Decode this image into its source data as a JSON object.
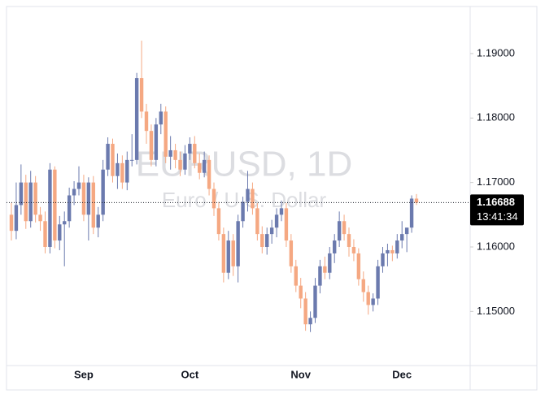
{
  "chart_data": {
    "type": "candlestick",
    "watermark": "EURUSD, 1D",
    "watermark_subtitle": "Euro / U.S. Dollar",
    "categories": [
      null,
      null,
      null,
      null,
      null,
      null,
      null,
      null,
      null,
      null,
      null,
      null,
      null,
      null,
      null,
      "Sep",
      null,
      null,
      null,
      null,
      null,
      null,
      null,
      null,
      null,
      null,
      null,
      null,
      null,
      null,
      null,
      null,
      null,
      null,
      null,
      null,
      null,
      "Oct",
      null,
      null,
      null,
      null,
      null,
      null,
      null,
      null,
      null,
      null,
      null,
      null,
      null,
      null,
      null,
      null,
      null,
      null,
      null,
      null,
      null,
      null,
      "Nov",
      null,
      null,
      null,
      null,
      null,
      null,
      null,
      null,
      null,
      null,
      null,
      null,
      null,
      null,
      null,
      null,
      null,
      null,
      null,
      null,
      "Dec",
      null,
      null,
      null
    ],
    "open": [
      1.165,
      1.1625,
      1.1665,
      1.17,
      1.164,
      1.17,
      1.165,
      1.164,
      1.16,
      1.172,
      1.161,
      1.1635,
      1.164,
      1.168,
      1.169,
      1.17,
      1.165,
      1.17,
      1.163,
      1.165,
      1.172,
      1.176,
      1.171,
      1.173,
      1.17,
      1.1735,
      1.1735,
      1.1862,
      1.181,
      1.178,
      1.1735,
      1.179,
      1.181,
      1.174,
      1.175,
      1.1735,
      1.172,
      1.1745,
      1.176,
      1.173,
      1.1715,
      1.1735,
      1.169,
      1.166,
      1.162,
      1.156,
      1.161,
      1.157,
      1.164,
      1.167,
      1.169,
      1.166,
      1.162,
      1.16,
      1.162,
      1.163,
      1.165,
      1.166,
      1.161,
      1.157,
      1.154,
      1.152,
      1.148,
      1.149,
      1.154,
      1.157,
      1.156,
      1.159,
      1.161,
      1.164,
      1.162,
      1.16,
      1.159,
      1.155,
      1.153,
      1.151,
      1.152,
      1.157,
      1.159,
      1.1595,
      1.159,
      1.161,
      1.162,
      1.163,
      1.1675
    ],
    "high": [
      1.1668,
      1.17,
      1.1728,
      1.1712,
      1.1718,
      1.171,
      1.1662,
      1.1655,
      1.173,
      1.1725,
      1.1648,
      1.1655,
      1.1692,
      1.1702,
      1.1725,
      1.1712,
      1.1708,
      1.171,
      1.1662,
      1.1735,
      1.177,
      1.1768,
      1.1745,
      1.1742,
      1.1748,
      1.1775,
      1.187,
      1.192,
      1.1822,
      1.179,
      1.18,
      1.1822,
      1.1818,
      1.1772,
      1.176,
      1.1748,
      1.1758,
      1.177,
      1.1772,
      1.1745,
      1.1748,
      1.1742,
      1.17,
      1.167,
      1.163,
      1.1625,
      1.162,
      1.165,
      1.1678,
      1.1718,
      1.17,
      1.1668,
      1.1632,
      1.163,
      1.1642,
      1.166,
      1.1672,
      1.1668,
      1.162,
      1.158,
      1.1552,
      1.153,
      1.15,
      1.1552,
      1.158,
      1.1585,
      1.16,
      1.162,
      1.1655,
      1.165,
      1.163,
      1.1612,
      1.1598,
      1.1562,
      1.154,
      1.1528,
      1.158,
      1.16,
      1.1605,
      1.1602,
      1.162,
      1.164,
      1.163,
      1.168,
      1.1682
    ],
    "low": [
      1.161,
      1.1612,
      1.165,
      1.1628,
      1.163,
      1.1638,
      1.1625,
      1.159,
      1.159,
      1.1598,
      1.1595,
      1.157,
      1.163,
      1.1665,
      1.168,
      1.164,
      1.161,
      1.162,
      1.1615,
      1.164,
      1.171,
      1.17,
      1.169,
      1.169,
      1.1688,
      1.1725,
      1.1728,
      1.18,
      1.176,
      1.1725,
      1.1725,
      1.1775,
      1.173,
      1.172,
      1.1722,
      1.171,
      1.1712,
      1.1735,
      1.1722,
      1.1705,
      1.1708,
      1.168,
      1.1648,
      1.161,
      1.1545,
      1.155,
      1.1555,
      1.1545,
      1.163,
      1.1655,
      1.165,
      1.161,
      1.159,
      1.1588,
      1.1605,
      1.1615,
      1.164,
      1.16,
      1.156,
      1.153,
      1.1505,
      1.147,
      1.1468,
      1.1482,
      1.1528,
      1.155,
      1.155,
      1.1575,
      1.16,
      1.161,
      1.1585,
      1.1578,
      1.154,
      1.1515,
      1.1495,
      1.15,
      1.151,
      1.156,
      1.157,
      1.1578,
      1.1582,
      1.1598,
      1.1592,
      1.1622,
      1.1665
    ],
    "close": [
      1.1625,
      1.1665,
      1.17,
      1.164,
      1.17,
      1.165,
      1.164,
      1.16,
      1.172,
      1.161,
      1.1635,
      1.164,
      1.168,
      1.169,
      1.17,
      1.165,
      1.17,
      1.163,
      1.165,
      1.172,
      1.176,
      1.171,
      1.173,
      1.17,
      1.1735,
      1.1735,
      1.1862,
      1.181,
      1.178,
      1.1735,
      1.179,
      1.181,
      1.174,
      1.175,
      1.1735,
      1.172,
      1.1745,
      1.176,
      1.173,
      1.1715,
      1.1735,
      1.169,
      1.166,
      1.162,
      1.156,
      1.161,
      1.157,
      1.164,
      1.167,
      1.169,
      1.166,
      1.162,
      1.16,
      1.162,
      1.163,
      1.165,
      1.166,
      1.161,
      1.157,
      1.154,
      1.152,
      1.148,
      1.149,
      1.154,
      1.157,
      1.156,
      1.159,
      1.161,
      1.164,
      1.162,
      1.16,
      1.159,
      1.155,
      1.153,
      1.151,
      1.152,
      1.157,
      1.159,
      1.1595,
      1.159,
      1.161,
      1.162,
      1.163,
      1.1675,
      1.16688
    ],
    "up_color": "#6b7aae",
    "down_color": "#f5a882",
    "ylim": [
      1.1416,
      1.1973
    ],
    "yticks": [
      {
        "value": 1.15,
        "label": "1.15000"
      },
      {
        "value": 1.16,
        "label": "1.16000"
      },
      {
        "value": 1.17,
        "label": "1.17000"
      },
      {
        "value": 1.18,
        "label": "1.18000"
      },
      {
        "value": 1.19,
        "label": "1.19000"
      }
    ],
    "last_price": 1.16688,
    "last_time": "13:41:34"
  }
}
